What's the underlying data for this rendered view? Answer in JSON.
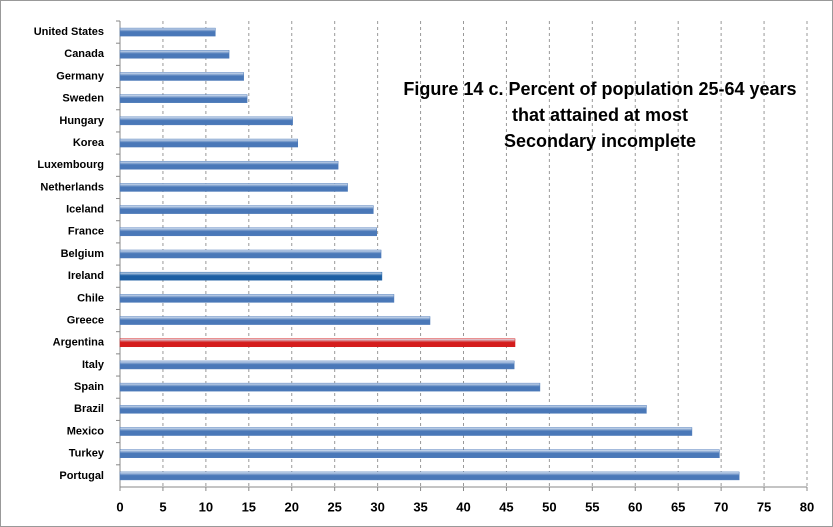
{
  "chart_data": {
    "type": "hbar",
    "title": [
      "Figure 14 c. Percent of population 25-64 years",
      "that attained at most",
      "Secondary incomplete"
    ],
    "categories": [
      "United States",
      "Canada",
      "Germany",
      "Sweden",
      "Hungary",
      "Korea",
      "Luxembourg",
      "Netherlands",
      "Iceland",
      "France",
      "Belgium",
      "Ireland",
      "Chile",
      "Greece",
      "Argentina",
      "Italy",
      "Spain",
      "Brazil",
      "Mexico",
      "Turkey",
      "Portugal"
    ],
    "values": [
      11.1,
      12.7,
      14.4,
      14.8,
      20.1,
      20.7,
      25.4,
      26.5,
      29.5,
      29.9,
      30.4,
      30.5,
      31.9,
      36.1,
      46.0,
      45.9,
      48.9,
      61.3,
      66.6,
      69.8,
      72.1
    ],
    "colors": [
      "#4a78b8",
      "#4a78b8",
      "#4a78b8",
      "#4a78b8",
      "#4a78b8",
      "#4a78b8",
      "#4a78b8",
      "#4a78b8",
      "#4a78b8",
      "#4a78b8",
      "#4a78b8",
      "#1d5fa3",
      "#4a78b8",
      "#4a78b8",
      "#d41c1c",
      "#4a78b8",
      "#4a78b8",
      "#4a78b8",
      "#4a78b8",
      "#4a78b8",
      "#4a78b8"
    ],
    "xlim": [
      0,
      80
    ],
    "xticks": [
      0,
      5,
      10,
      15,
      20,
      25,
      30,
      35,
      40,
      45,
      50,
      55,
      60,
      65,
      70,
      75,
      80
    ],
    "grid": true
  }
}
